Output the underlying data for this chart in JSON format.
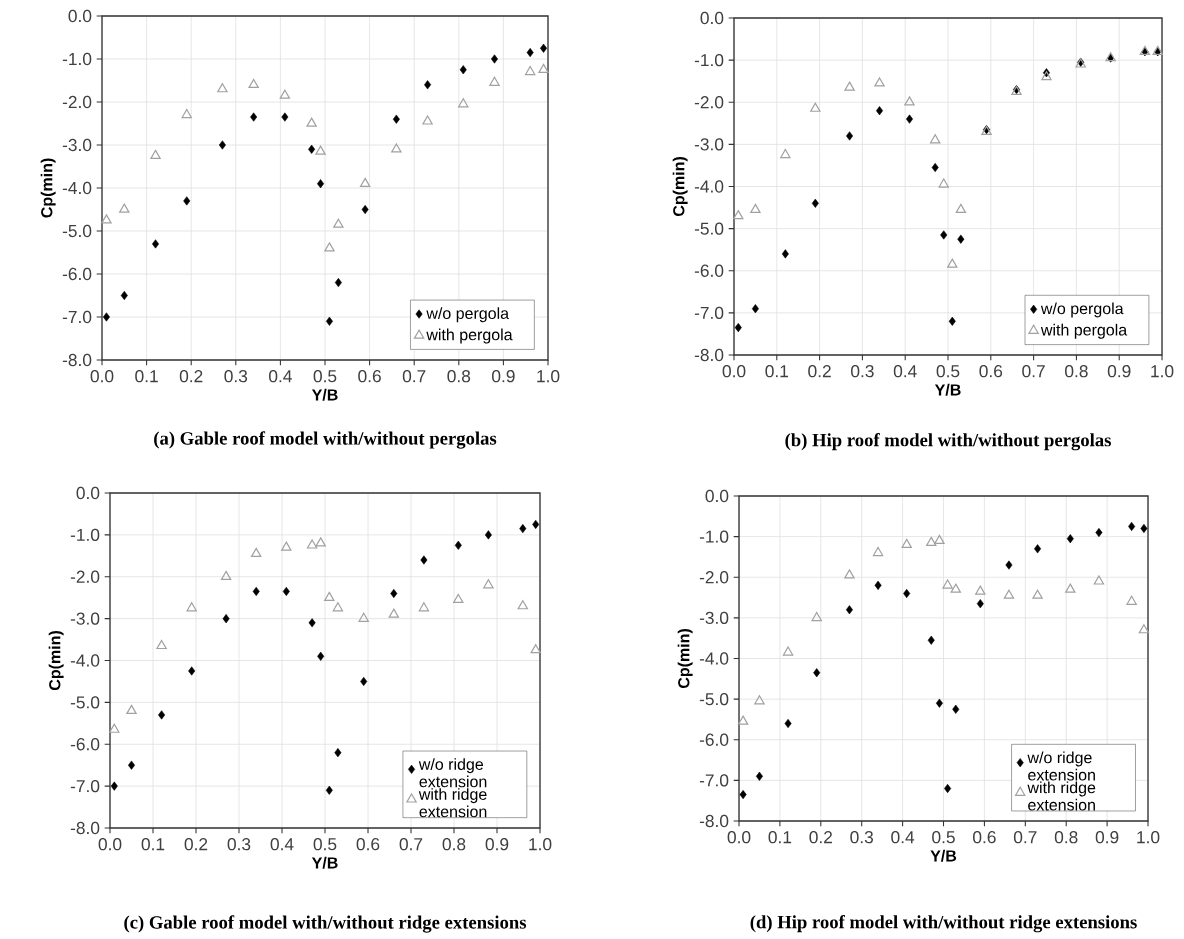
{
  "chart_data": [
    {
      "type": "scatter",
      "xlabel": "Y/B",
      "ylabel": "Cp(min)",
      "xlim": [
        0,
        1
      ],
      "ylim": [
        -8,
        0
      ],
      "xticks": [
        {
          "value": 0,
          "label": "0.0"
        },
        {
          "value": 0.1,
          "label": "0.1"
        },
        {
          "value": 0.2,
          "label": "0.2"
        },
        {
          "value": 0.3,
          "label": "0.3"
        },
        {
          "value": 0.4,
          "label": "0.4"
        },
        {
          "value": 0.5,
          "label": "0.5"
        },
        {
          "value": 0.6,
          "label": "0.6"
        },
        {
          "value": 0.7,
          "label": "0.7"
        },
        {
          "value": 0.8,
          "label": "0.8"
        },
        {
          "value": 0.9,
          "label": "0.9"
        },
        {
          "value": 1,
          "label": "1.0"
        }
      ],
      "yticks": [
        {
          "value": 0,
          "label": "0.0"
        },
        {
          "value": -1,
          "label": "-1.0"
        },
        {
          "value": -2,
          "label": "-2.0"
        },
        {
          "value": -3,
          "label": "-3.0"
        },
        {
          "value": -4,
          "label": "-4.0"
        },
        {
          "value": -5,
          "label": "-5.0"
        },
        {
          "value": -6,
          "label": "-6.0"
        },
        {
          "value": -7,
          "label": "-7.0"
        },
        {
          "value": -8,
          "label": "-8.0"
        }
      ],
      "grid": true,
      "legend": "bottom right",
      "x": [
        0.01,
        0.05,
        0.12,
        0.19,
        0.27,
        0.34,
        0.41,
        0.47,
        0.49,
        0.51,
        0.53,
        0.59,
        0.66,
        0.73,
        0.81,
        0.88,
        0.96,
        0.99
      ],
      "series": [
        {
          "name": "w/o pergola",
          "color": "#000000",
          "marker": "diamond",
          "values": [
            -7.0,
            -6.5,
            -5.3,
            -4.3,
            -3.0,
            -2.35,
            -2.35,
            -3.1,
            -3.9,
            -7.1,
            -6.2,
            -4.5,
            -2.4,
            -1.6,
            -1.25,
            -1.0,
            -0.85,
            -0.75
          ]
        },
        {
          "name": "with pergola",
          "color": "#a0a0a0",
          "marker": "triangle",
          "values": [
            -4.75,
            -4.5,
            -3.25,
            -2.3,
            -1.7,
            -1.6,
            -1.85,
            -2.5,
            -3.15,
            -5.4,
            -4.85,
            -3.9,
            -3.1,
            -2.45,
            -2.05,
            -1.55,
            -1.3,
            -1.25
          ]
        }
      ],
      "annotations": [
        "(a) Gable roof model with/without pergolas"
      ]
    },
    {
      "type": "scatter",
      "xlabel": "Y/B",
      "ylabel": "Cp(min)",
      "xlim": [
        0,
        1
      ],
      "ylim": [
        -8,
        0
      ],
      "xticks": [
        {
          "value": 0,
          "label": "0.0"
        },
        {
          "value": 0.1,
          "label": "0.1"
        },
        {
          "value": 0.2,
          "label": "0.2"
        },
        {
          "value": 0.3,
          "label": "0.3"
        },
        {
          "value": 0.4,
          "label": "0.4"
        },
        {
          "value": 0.5,
          "label": "0.5"
        },
        {
          "value": 0.6,
          "label": "0.6"
        },
        {
          "value": 0.7,
          "label": "0.7"
        },
        {
          "value": 0.8,
          "label": "0.8"
        },
        {
          "value": 0.9,
          "label": "0.9"
        },
        {
          "value": 1,
          "label": "1.0"
        }
      ],
      "yticks": [
        {
          "value": 0,
          "label": "0.0"
        },
        {
          "value": -1,
          "label": "-1.0"
        },
        {
          "value": -2,
          "label": "-2.0"
        },
        {
          "value": -3,
          "label": "-3.0"
        },
        {
          "value": -4,
          "label": "-4.0"
        },
        {
          "value": -5,
          "label": "-5.0"
        },
        {
          "value": -6,
          "label": "-6.0"
        },
        {
          "value": -7,
          "label": "-7.0"
        },
        {
          "value": -8,
          "label": "-8.0"
        }
      ],
      "grid": true,
      "legend": "bottom right",
      "x": [
        0.01,
        0.05,
        0.12,
        0.19,
        0.27,
        0.34,
        0.41,
        0.47,
        0.49,
        0.51,
        0.53,
        0.59,
        0.66,
        0.73,
        0.81,
        0.88,
        0.96,
        0.99
      ],
      "series": [
        {
          "name": "w/o pergola",
          "color": "#000000",
          "marker": "diamond",
          "values": [
            -7.35,
            -6.9,
            -5.6,
            -4.4,
            -2.8,
            -2.2,
            -2.4,
            -3.55,
            -5.15,
            -7.2,
            -5.25,
            -2.65,
            -1.7,
            -1.3,
            -1.05,
            -0.95,
            -0.8,
            -0.8
          ]
        },
        {
          "name": "with pergola",
          "color": "#a0a0a0",
          "marker": "triangle",
          "values": [
            -4.7,
            -4.55,
            -3.25,
            -2.15,
            -1.65,
            -1.55,
            -2.0,
            -2.9,
            -3.95,
            -5.85,
            -4.55,
            -2.7,
            -1.75,
            -1.4,
            -1.1,
            -0.95,
            -0.8,
            -0.8
          ]
        }
      ],
      "annotations": [
        "(b) Hip roof model with/without pergolas"
      ]
    },
    {
      "type": "scatter",
      "xlabel": "Y/B",
      "ylabel": "Cp(min)",
      "xlim": [
        0,
        1
      ],
      "ylim": [
        -8,
        0
      ],
      "xticks": [
        {
          "value": 0,
          "label": "0.0"
        },
        {
          "value": 0.1,
          "label": "0.1"
        },
        {
          "value": 0.2,
          "label": "0.2"
        },
        {
          "value": 0.3,
          "label": "0.3"
        },
        {
          "value": 0.4,
          "label": "0.4"
        },
        {
          "value": 0.5,
          "label": "0.5"
        },
        {
          "value": 0.6,
          "label": "0.6"
        },
        {
          "value": 0.7,
          "label": "0.7"
        },
        {
          "value": 0.8,
          "label": "0.8"
        },
        {
          "value": 0.9,
          "label": "0.9"
        },
        {
          "value": 1,
          "label": "1.0"
        }
      ],
      "yticks": [
        {
          "value": 0,
          "label": "0.0"
        },
        {
          "value": -1,
          "label": "-1.0"
        },
        {
          "value": -2,
          "label": "-2.0"
        },
        {
          "value": -3,
          "label": "-3.0"
        },
        {
          "value": -4,
          "label": "-4.0"
        },
        {
          "value": -5,
          "label": "-5.0"
        },
        {
          "value": -6,
          "label": "-6.0"
        },
        {
          "value": -7,
          "label": "-7.0"
        },
        {
          "value": -8,
          "label": "-8.0"
        }
      ],
      "grid": true,
      "legend": "bottom right",
      "x": [
        0.01,
        0.05,
        0.12,
        0.19,
        0.27,
        0.34,
        0.41,
        0.47,
        0.49,
        0.51,
        0.53,
        0.59,
        0.66,
        0.73,
        0.81,
        0.88,
        0.96,
        0.99
      ],
      "series": [
        {
          "name": "w/o ridge extension",
          "color": "#000000",
          "marker": "diamond",
          "values": [
            -7.0,
            -6.5,
            -5.3,
            -4.25,
            -3.0,
            -2.35,
            -2.35,
            -3.1,
            -3.9,
            -7.1,
            -6.2,
            -4.5,
            -2.4,
            -1.6,
            -1.25,
            -1.0,
            -0.85,
            -0.75
          ]
        },
        {
          "name": "with ridge extension",
          "color": "#a0a0a0",
          "marker": "triangle",
          "values": [
            -5.65,
            -5.2,
            -3.65,
            -2.75,
            -2.0,
            -1.45,
            -1.3,
            -1.25,
            -1.2,
            -2.5,
            -2.75,
            -3.0,
            -2.9,
            -2.75,
            -2.55,
            -2.2,
            -2.7,
            -3.75
          ]
        }
      ],
      "annotations": [
        "(c) Gable roof model with/without ridge extensions"
      ]
    },
    {
      "type": "scatter",
      "xlabel": "Y/B",
      "ylabel": "Cp(min)",
      "xlim": [
        0,
        1
      ],
      "ylim": [
        -8,
        0
      ],
      "xticks": [
        {
          "value": 0,
          "label": "0.0"
        },
        {
          "value": 0.1,
          "label": "0.1"
        },
        {
          "value": 0.2,
          "label": "0.2"
        },
        {
          "value": 0.3,
          "label": "0.3"
        },
        {
          "value": 0.4,
          "label": "0.4"
        },
        {
          "value": 0.5,
          "label": "0.5"
        },
        {
          "value": 0.6,
          "label": "0.6"
        },
        {
          "value": 0.7,
          "label": "0.7"
        },
        {
          "value": 0.8,
          "label": "0.8"
        },
        {
          "value": 0.9,
          "label": "0.9"
        },
        {
          "value": 1,
          "label": "1.0"
        }
      ],
      "yticks": [
        {
          "value": 0,
          "label": "0.0"
        },
        {
          "value": -1,
          "label": "-1.0"
        },
        {
          "value": -2,
          "label": "-2.0"
        },
        {
          "value": -3,
          "label": "-3.0"
        },
        {
          "value": -4,
          "label": "-4.0"
        },
        {
          "value": -5,
          "label": "-5.0"
        },
        {
          "value": -6,
          "label": "-6.0"
        },
        {
          "value": -7,
          "label": "-7.0"
        },
        {
          "value": -8,
          "label": "-8.0"
        }
      ],
      "grid": true,
      "legend": "bottom right",
      "x": [
        0.01,
        0.05,
        0.12,
        0.19,
        0.27,
        0.34,
        0.41,
        0.47,
        0.49,
        0.51,
        0.53,
        0.59,
        0.66,
        0.73,
        0.81,
        0.88,
        0.96,
        0.99
      ],
      "series": [
        {
          "name": "w/o ridge extension",
          "color": "#000000",
          "marker": "diamond",
          "values": [
            -7.35,
            -6.9,
            -5.6,
            -4.35,
            -2.8,
            -2.2,
            -2.4,
            -3.55,
            -5.1,
            -7.2,
            -5.25,
            -2.65,
            -1.7,
            -1.3,
            -1.05,
            -0.9,
            -0.75,
            -0.8
          ]
        },
        {
          "name": "with ridge extension",
          "color": "#a0a0a0",
          "marker": "triangle",
          "values": [
            -5.55,
            -5.05,
            -3.85,
            -3.0,
            -1.95,
            -1.4,
            -1.2,
            -1.15,
            -1.1,
            -2.2,
            -2.3,
            -2.35,
            -2.45,
            -2.45,
            -2.3,
            -2.1,
            -2.6,
            -3.3
          ]
        }
      ],
      "annotations": [
        "(d) Hip roof model with/without ridge extensions"
      ]
    }
  ]
}
